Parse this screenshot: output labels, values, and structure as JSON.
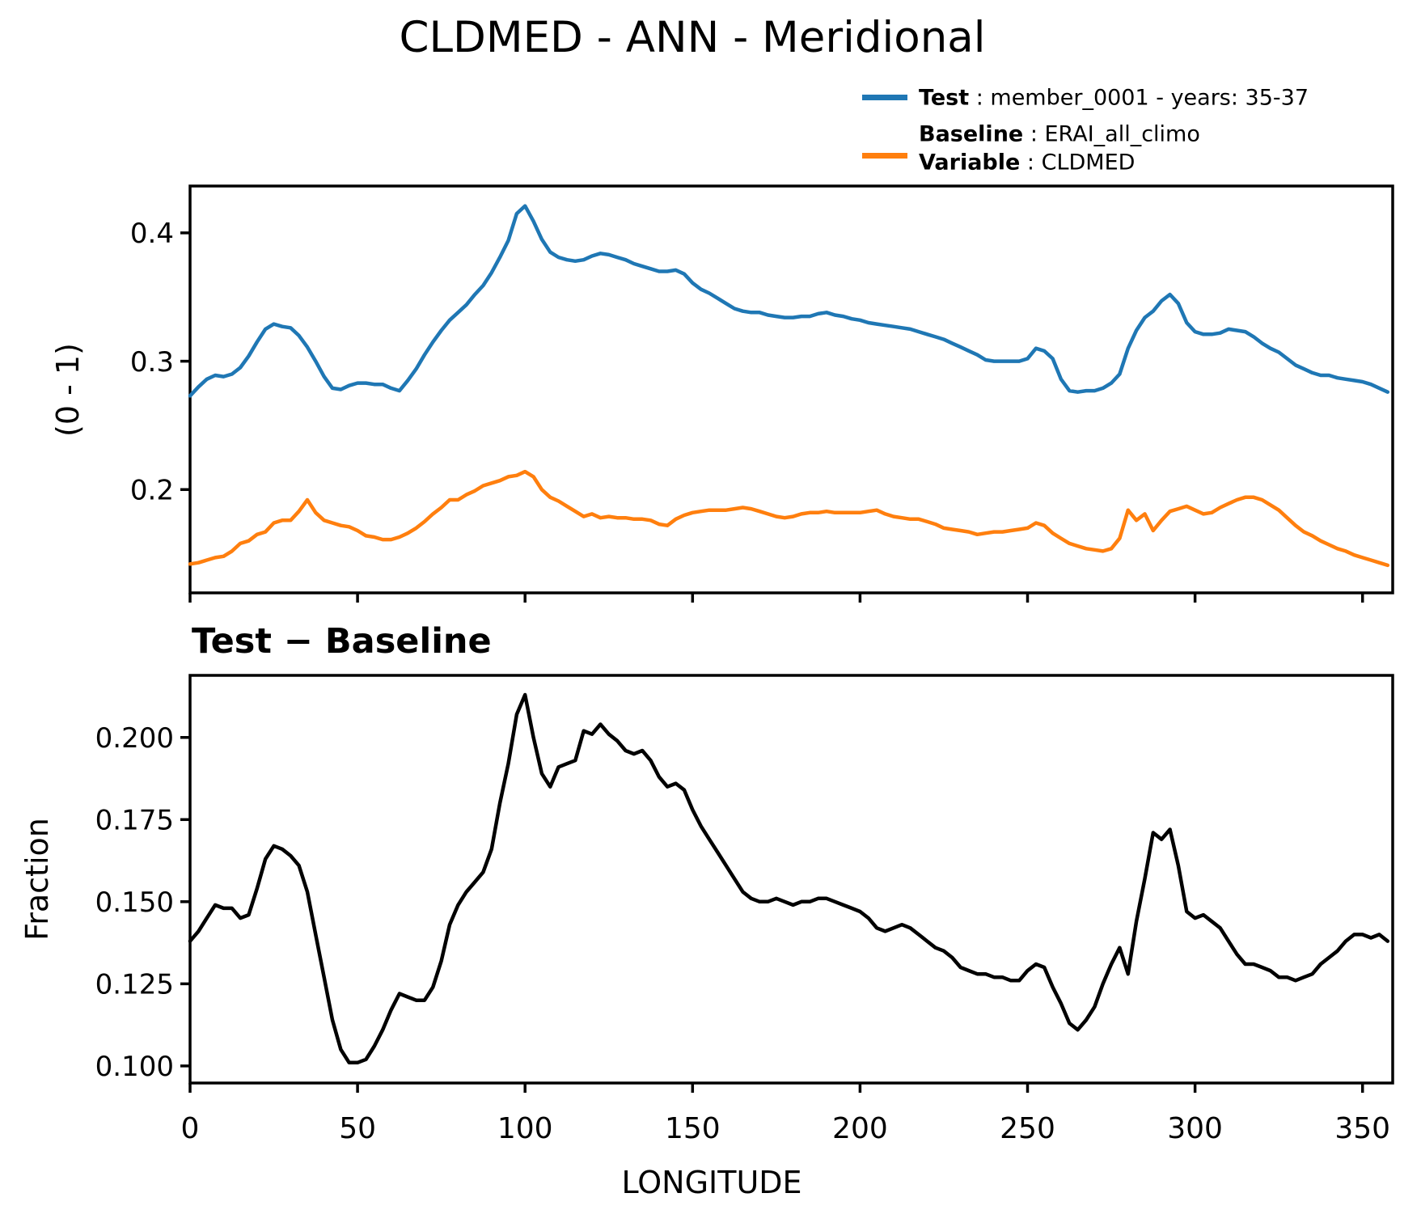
{
  "title": "CLDMED - ANN - Meridional",
  "colors": {
    "test": "#1f77b4",
    "baseline": "#ff7f0e",
    "diff": "#000000",
    "axis": "#000000"
  },
  "legend": {
    "entries": [
      {
        "color": "#1f77b4",
        "rows": [
          {
            "bold": "Test",
            "rest": " : member_0001 - years: 35-37"
          }
        ]
      },
      {
        "color": "#ff7f0e",
        "rows": [
          {
            "bold": "Baseline",
            "rest": " : ERAI_all_climo"
          },
          {
            "bold": "Variable",
            "rest": " : CLDMED"
          }
        ]
      }
    ]
  },
  "labels": {
    "top_ylabel": "(0 - 1)",
    "bottom_title": "Test − Baseline",
    "bottom_ylabel": "Fraction",
    "xlabel": "LONGITUDE"
  },
  "chart_data": [
    {
      "type": "line",
      "title": "",
      "ylabel": "(0 - 1)",
      "xlabel": "",
      "xlim": [
        0,
        359
      ],
      "ylim": [
        0.1195,
        0.4365
      ],
      "grid": false,
      "legend_position": "upper-right-above-axes",
      "yticks": [
        0.4,
        0.3,
        0.2
      ],
      "yticklabels": [
        "0.4",
        "0.3",
        "0.2"
      ],
      "xticks": [
        0,
        50,
        100,
        150,
        200,
        250,
        300,
        350
      ],
      "xticklabels": [],
      "x": [
        0,
        2.5,
        5,
        7.5,
        10,
        12.5,
        15,
        17.5,
        20,
        22.5,
        25,
        27.5,
        30,
        32.5,
        35,
        37.5,
        40,
        42.5,
        45,
        47.5,
        50,
        52.5,
        55,
        57.5,
        60,
        62.5,
        65,
        67.5,
        70,
        72.5,
        75,
        77.5,
        80,
        82.5,
        85,
        87.5,
        90,
        92.5,
        95,
        97.5,
        100,
        102.5,
        105,
        107.5,
        110,
        112.5,
        115,
        117.5,
        120,
        122.5,
        125,
        127.5,
        130,
        132.5,
        135,
        137.5,
        140,
        142.5,
        145,
        147.5,
        150,
        152.5,
        155,
        157.5,
        160,
        162.5,
        165,
        167.5,
        170,
        172.5,
        175,
        177.5,
        180,
        182.5,
        185,
        187.5,
        190,
        192.5,
        195,
        197.5,
        200,
        202.5,
        205,
        207.5,
        210,
        212.5,
        215,
        217.5,
        220,
        222.5,
        225,
        227.5,
        230,
        232.5,
        235,
        237.5,
        240,
        242.5,
        245,
        247.5,
        250,
        252.5,
        255,
        257.5,
        260,
        262.5,
        265,
        267.5,
        270,
        272.5,
        275,
        277.5,
        280,
        282.5,
        285,
        287.5,
        290,
        292.5,
        295,
        297.5,
        300,
        302.5,
        305,
        307.5,
        310,
        312.5,
        315,
        317.5,
        320,
        322.5,
        325,
        327.5,
        330,
        332.5,
        335,
        337.5,
        340,
        342.5,
        345,
        347.5,
        350,
        352.5,
        355,
        357.5
      ],
      "series": [
        {
          "name": "Test : member_0001 - years: 35-37",
          "color": "#1f77b4",
          "values": [
            0.273,
            0.28,
            0.286,
            0.289,
            0.288,
            0.29,
            0.295,
            0.304,
            0.315,
            0.325,
            0.329,
            0.327,
            0.326,
            0.32,
            0.311,
            0.3,
            0.288,
            0.279,
            0.278,
            0.281,
            0.283,
            0.283,
            0.282,
            0.282,
            0.279,
            0.277,
            0.285,
            0.294,
            0.305,
            0.315,
            0.324,
            0.332,
            0.338,
            0.344,
            0.352,
            0.359,
            0.369,
            0.381,
            0.394,
            0.415,
            0.421,
            0.409,
            0.395,
            0.385,
            0.381,
            0.379,
            0.378,
            0.379,
            0.382,
            0.384,
            0.383,
            0.381,
            0.379,
            0.376,
            0.374,
            0.372,
            0.37,
            0.37,
            0.371,
            0.368,
            0.361,
            0.356,
            0.353,
            0.349,
            0.345,
            0.341,
            0.339,
            0.338,
            0.338,
            0.336,
            0.335,
            0.334,
            0.334,
            0.335,
            0.335,
            0.337,
            0.338,
            0.336,
            0.335,
            0.333,
            0.332,
            0.33,
            0.329,
            0.328,
            0.327,
            0.326,
            0.325,
            0.323,
            0.321,
            0.319,
            0.317,
            0.314,
            0.311,
            0.308,
            0.305,
            0.301,
            0.3,
            0.3,
            0.3,
            0.3,
            0.302,
            0.31,
            0.308,
            0.302,
            0.286,
            0.277,
            0.276,
            0.277,
            0.277,
            0.279,
            0.283,
            0.29,
            0.31,
            0.324,
            0.334,
            0.339,
            0.347,
            0.352,
            0.345,
            0.33,
            0.323,
            0.321,
            0.321,
            0.322,
            0.325,
            0.324,
            0.323,
            0.319,
            0.314,
            0.31,
            0.307,
            0.302,
            0.297,
            0.294,
            0.291,
            0.289,
            0.289,
            0.287,
            0.286,
            0.285,
            0.284,
            0.282,
            0.279,
            0.276
          ]
        },
        {
          "name": "Baseline : ERAI_all_climo",
          "color": "#ff7f0e",
          "values": [
            0.142,
            0.143,
            0.145,
            0.147,
            0.148,
            0.152,
            0.158,
            0.16,
            0.165,
            0.167,
            0.174,
            0.176,
            0.176,
            0.183,
            0.192,
            0.182,
            0.176,
            0.174,
            0.172,
            0.171,
            0.168,
            0.164,
            0.163,
            0.161,
            0.161,
            0.163,
            0.166,
            0.17,
            0.175,
            0.181,
            0.186,
            0.192,
            0.192,
            0.196,
            0.199,
            0.203,
            0.205,
            0.207,
            0.21,
            0.211,
            0.214,
            0.21,
            0.2,
            0.194,
            0.191,
            0.187,
            0.183,
            0.179,
            0.181,
            0.178,
            0.179,
            0.178,
            0.178,
            0.177,
            0.177,
            0.176,
            0.173,
            0.172,
            0.177,
            0.18,
            0.182,
            0.183,
            0.184,
            0.184,
            0.184,
            0.185,
            0.186,
            0.185,
            0.183,
            0.181,
            0.179,
            0.178,
            0.179,
            0.181,
            0.182,
            0.182,
            0.183,
            0.182,
            0.182,
            0.182,
            0.182,
            0.183,
            0.184,
            0.181,
            0.179,
            0.178,
            0.177,
            0.177,
            0.175,
            0.173,
            0.17,
            0.169,
            0.168,
            0.167,
            0.165,
            0.166,
            0.167,
            0.167,
            0.168,
            0.169,
            0.17,
            0.174,
            0.172,
            0.166,
            0.162,
            0.158,
            0.156,
            0.154,
            0.153,
            0.152,
            0.154,
            0.162,
            0.184,
            0.176,
            0.181,
            0.168,
            0.176,
            0.183,
            0.185,
            0.187,
            0.184,
            0.181,
            0.182,
            0.186,
            0.189,
            0.192,
            0.194,
            0.194,
            0.192,
            0.188,
            0.184,
            0.178,
            0.172,
            0.167,
            0.164,
            0.16,
            0.157,
            0.154,
            0.152,
            0.149,
            0.147,
            0.145,
            0.143,
            0.141
          ]
        }
      ]
    },
    {
      "type": "line",
      "title": "Test − Baseline",
      "ylabel": "Fraction",
      "xlabel": "LONGITUDE",
      "xlim": [
        0,
        359
      ],
      "ylim": [
        0.0948,
        0.2189
      ],
      "grid": false,
      "yticks": [
        0.2,
        0.175,
        0.15,
        0.125,
        0.1
      ],
      "yticklabels": [
        "0.200",
        "0.175",
        "0.150",
        "0.125",
        "0.100"
      ],
      "xticks": [
        0,
        50,
        100,
        150,
        200,
        250,
        300,
        350
      ],
      "xticklabels": [
        "0",
        "50",
        "100",
        "150",
        "200",
        "250",
        "300",
        "350"
      ],
      "x": [
        0,
        2.5,
        5,
        7.5,
        10,
        12.5,
        15,
        17.5,
        20,
        22.5,
        25,
        27.5,
        30,
        32.5,
        35,
        37.5,
        40,
        42.5,
        45,
        47.5,
        50,
        52.5,
        55,
        57.5,
        60,
        62.5,
        65,
        67.5,
        70,
        72.5,
        75,
        77.5,
        80,
        82.5,
        85,
        87.5,
        90,
        92.5,
        95,
        97.5,
        100,
        102.5,
        105,
        107.5,
        110,
        112.5,
        115,
        117.5,
        120,
        122.5,
        125,
        127.5,
        130,
        132.5,
        135,
        137.5,
        140,
        142.5,
        145,
        147.5,
        150,
        152.5,
        155,
        157.5,
        160,
        162.5,
        165,
        167.5,
        170,
        172.5,
        175,
        177.5,
        180,
        182.5,
        185,
        187.5,
        190,
        192.5,
        195,
        197.5,
        200,
        202.5,
        205,
        207.5,
        210,
        212.5,
        215,
        217.5,
        220,
        222.5,
        225,
        227.5,
        230,
        232.5,
        235,
        237.5,
        240,
        242.5,
        245,
        247.5,
        250,
        252.5,
        255,
        257.5,
        260,
        262.5,
        265,
        267.5,
        270,
        272.5,
        275,
        277.5,
        280,
        282.5,
        285,
        287.5,
        290,
        292.5,
        295,
        297.5,
        300,
        302.5,
        305,
        307.5,
        310,
        312.5,
        315,
        317.5,
        320,
        322.5,
        325,
        327.5,
        330,
        332.5,
        335,
        337.5,
        340,
        342.5,
        345,
        347.5,
        350,
        352.5,
        355,
        357.5
      ],
      "series": [
        {
          "name": "Test − Baseline",
          "color": "#000000",
          "values": [
            0.138,
            0.141,
            0.145,
            0.149,
            0.148,
            0.148,
            0.145,
            0.146,
            0.154,
            0.163,
            0.167,
            0.166,
            0.164,
            0.161,
            0.153,
            0.14,
            0.127,
            0.114,
            0.105,
            0.101,
            0.101,
            0.102,
            0.106,
            0.111,
            0.117,
            0.122,
            0.121,
            0.12,
            0.12,
            0.124,
            0.132,
            0.143,
            0.149,
            0.153,
            0.156,
            0.159,
            0.166,
            0.18,
            0.192,
            0.207,
            0.213,
            0.2,
            0.189,
            0.185,
            0.191,
            0.192,
            0.193,
            0.202,
            0.201,
            0.204,
            0.201,
            0.199,
            0.196,
            0.195,
            0.196,
            0.193,
            0.188,
            0.185,
            0.186,
            0.184,
            0.178,
            0.173,
            0.169,
            0.165,
            0.161,
            0.157,
            0.153,
            0.151,
            0.15,
            0.15,
            0.151,
            0.15,
            0.149,
            0.15,
            0.15,
            0.151,
            0.151,
            0.15,
            0.149,
            0.148,
            0.147,
            0.145,
            0.142,
            0.141,
            0.142,
            0.143,
            0.142,
            0.14,
            0.138,
            0.136,
            0.135,
            0.133,
            0.13,
            0.129,
            0.128,
            0.128,
            0.127,
            0.127,
            0.126,
            0.126,
            0.129,
            0.131,
            0.13,
            0.124,
            0.119,
            0.113,
            0.111,
            0.114,
            0.118,
            0.125,
            0.131,
            0.136,
            0.128,
            0.144,
            0.157,
            0.171,
            0.169,
            0.172,
            0.161,
            0.147,
            0.145,
            0.146,
            0.144,
            0.142,
            0.138,
            0.134,
            0.131,
            0.131,
            0.13,
            0.129,
            0.127,
            0.127,
            0.126,
            0.127,
            0.128,
            0.131,
            0.133,
            0.135,
            0.138,
            0.14,
            0.14,
            0.139,
            0.14,
            0.138
          ]
        }
      ]
    }
  ]
}
